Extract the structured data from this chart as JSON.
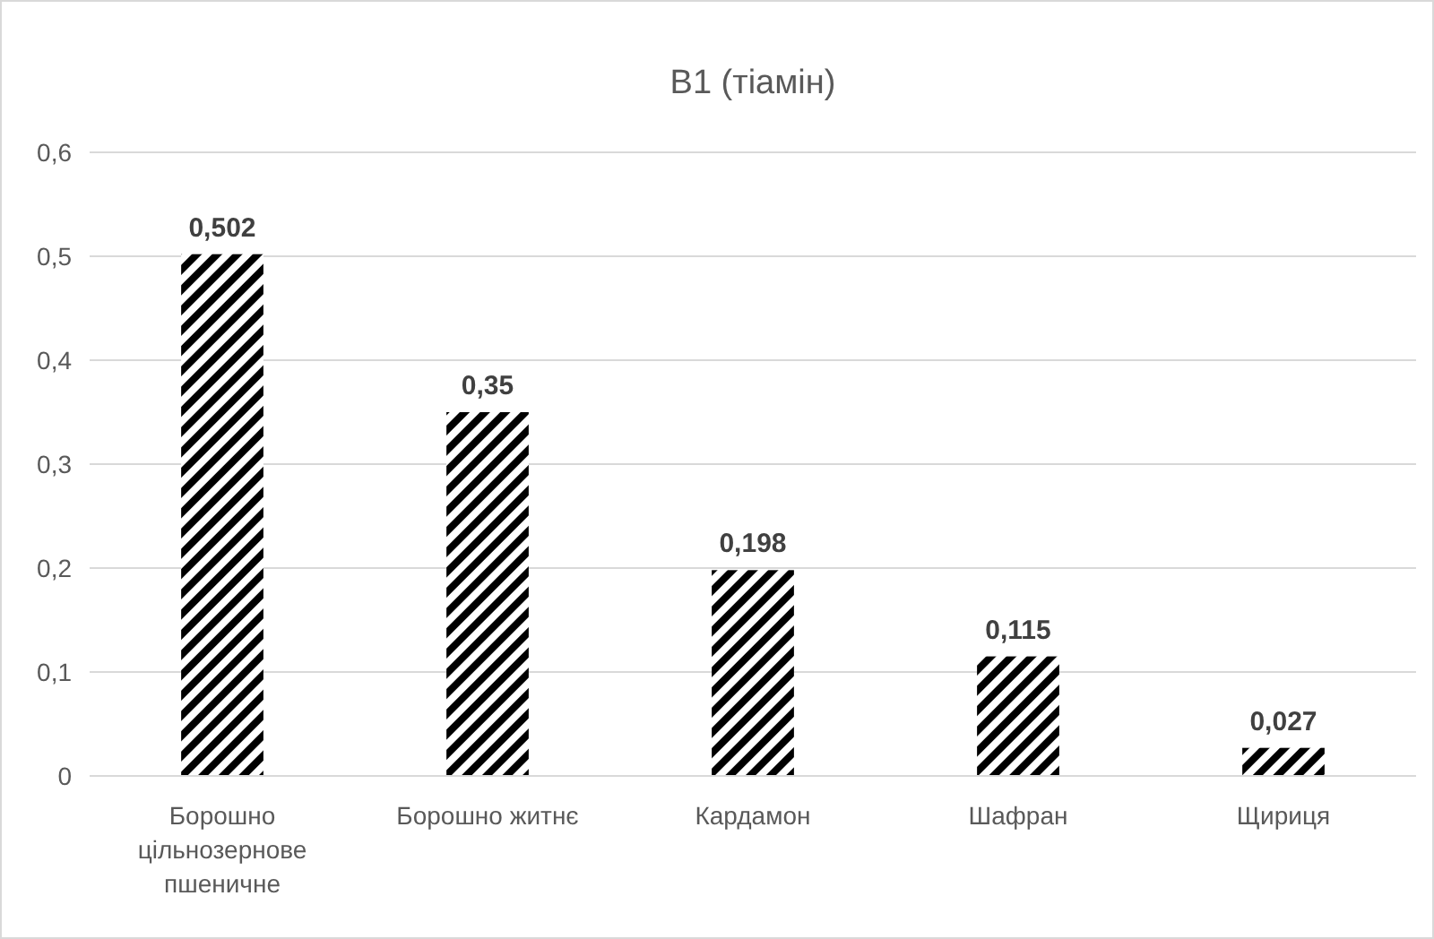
{
  "chart_data": {
    "type": "bar",
    "title": "B1 (тіамін)",
    "categories": [
      "Борошно цільнозернове пшеничне",
      "Борошно житнє",
      "Кардамон",
      "Шафран",
      "Щириця"
    ],
    "values": [
      0.502,
      0.35,
      0.198,
      0.115,
      0.027
    ],
    "value_labels": [
      "0,502",
      "0,35",
      "0,198",
      "0,115",
      "0,027"
    ],
    "color": "#000000",
    "ylim": [
      0,
      0.6
    ],
    "yticks": [
      {
        "value": 0,
        "label": "0"
      },
      {
        "value": 0.1,
        "label": "0,1"
      },
      {
        "value": 0.2,
        "label": "0,2"
      },
      {
        "value": 0.3,
        "label": "0,3"
      },
      {
        "value": 0.4,
        "label": "0,4"
      },
      {
        "value": 0.5,
        "label": "0,5"
      },
      {
        "value": 0.6,
        "label": "0,6"
      }
    ],
    "grid": true
  }
}
